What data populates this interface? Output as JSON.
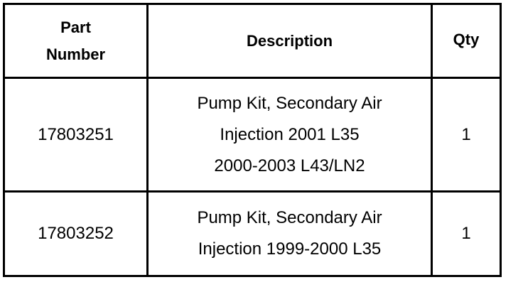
{
  "table": {
    "header": [
      "Part Number",
      "Description",
      "Qty"
    ],
    "rows": [
      [
        "17803251",
        [
          "Pump Kit, Secondary Air",
          "Injection 2001 L35",
          "2000-2003 L43/LN2"
        ],
        "1"
      ],
      [
        "17803252",
        [
          "Pump Kit, Secondary Air",
          "Injection 1999-2000 L35"
        ],
        "1"
      ]
    ]
  }
}
